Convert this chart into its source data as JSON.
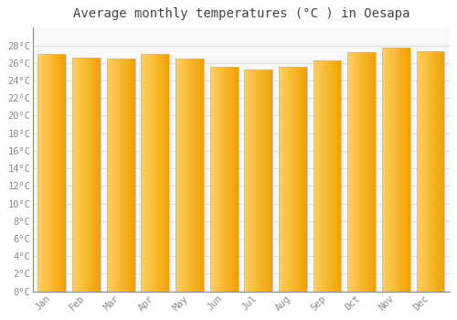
{
  "title": "Average monthly temperatures (°C ) in Oesapa",
  "months": [
    "Jan",
    "Feb",
    "Mar",
    "Apr",
    "May",
    "Jun",
    "Jul",
    "Aug",
    "Sep",
    "Oct",
    "Nov",
    "Dec"
  ],
  "values": [
    27.0,
    26.6,
    26.5,
    27.0,
    26.5,
    25.6,
    25.3,
    25.6,
    26.3,
    27.2,
    27.8,
    27.3
  ],
  "ylim": [
    0,
    30
  ],
  "yticks": [
    0,
    2,
    4,
    6,
    8,
    10,
    12,
    14,
    16,
    18,
    20,
    22,
    24,
    26,
    28
  ],
  "ytick_labels": [
    "0°C",
    "2°C",
    "4°C",
    "6°C",
    "8°C",
    "10°C",
    "12°C",
    "14°C",
    "16°C",
    "18°C",
    "20°C",
    "22°C",
    "24°C",
    "26°C",
    "28°C"
  ],
  "bar_color_left": "#FFD060",
  "bar_color_right": "#F0A000",
  "bar_edge_color": "#BBBBBB",
  "background_color": "#FFFFFF",
  "plot_bg_color": "#F8F8F8",
  "grid_color": "#DDDDDD",
  "title_color": "#444444",
  "tick_label_color": "#888888",
  "title_fontsize": 10,
  "tick_fontsize": 7.5,
  "bar_width": 0.82
}
